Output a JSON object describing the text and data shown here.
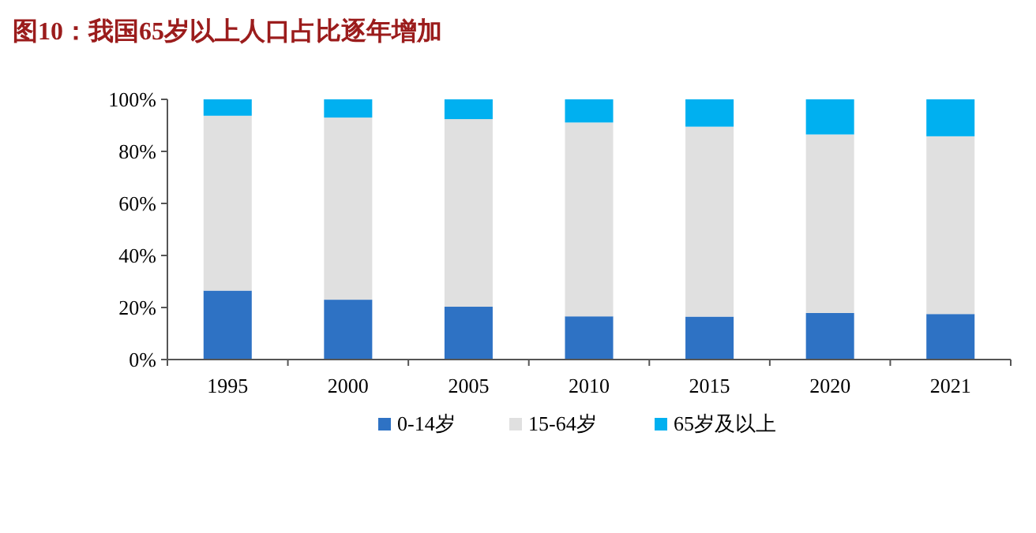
{
  "chart_data": {
    "type": "bar",
    "stacked": true,
    "title": "图10：我国65岁以上人口占比逐年增加",
    "categories": [
      "1995",
      "2000",
      "2005",
      "2010",
      "2015",
      "2020",
      "2021"
    ],
    "series": [
      {
        "name": "0-14岁",
        "color": "#2e72c4",
        "values": [
          26.5,
          23,
          20.3,
          16.6,
          16.5,
          17.9,
          17.5
        ]
      },
      {
        "name": "15-64岁",
        "color": "#e0e0e0",
        "values": [
          67.2,
          70.0,
          72.1,
          74.5,
          73.0,
          68.6,
          68.3
        ]
      },
      {
        "name": "65岁及以上",
        "color": "#00b0f0",
        "values": [
          6.3,
          7.0,
          7.6,
          8.9,
          10.5,
          13.5,
          14.2
        ]
      }
    ],
    "ylim": [
      0,
      100
    ],
    "yticks": [
      {
        "value": 0,
        "label": "0%"
      },
      {
        "value": 20,
        "label": "20%"
      },
      {
        "value": 40,
        "label": "40%"
      },
      {
        "value": 60,
        "label": "60%"
      },
      {
        "value": 80,
        "label": "80%"
      },
      {
        "value": 100,
        "label": "100%"
      }
    ],
    "grid": false,
    "legend": "bottom"
  }
}
